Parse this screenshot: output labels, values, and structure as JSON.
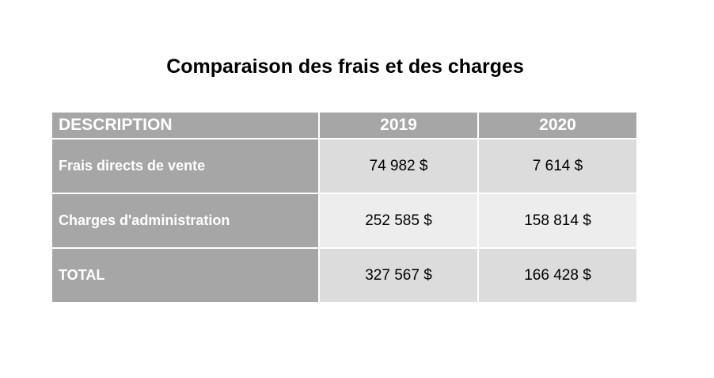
{
  "title": "Comparaison des frais et des charges",
  "table": {
    "headers": [
      "DESCRIPTION",
      "2019",
      "2020"
    ],
    "rows": [
      {
        "label": "Frais directs de vente",
        "y2019": "74 982 $",
        "y2020": "7 614 $"
      },
      {
        "label": "Charges d'administration",
        "y2019": "252 585 $",
        "y2020": "158 814 $"
      },
      {
        "label": "TOTAL",
        "y2019": "327 567 $",
        "y2020": "166 428 $"
      }
    ]
  },
  "colors": {
    "header_bg": "#a6a6a6",
    "header_text": "#ffffff",
    "cell_dark": "#dcdcdc",
    "cell_light": "#ededed"
  }
}
